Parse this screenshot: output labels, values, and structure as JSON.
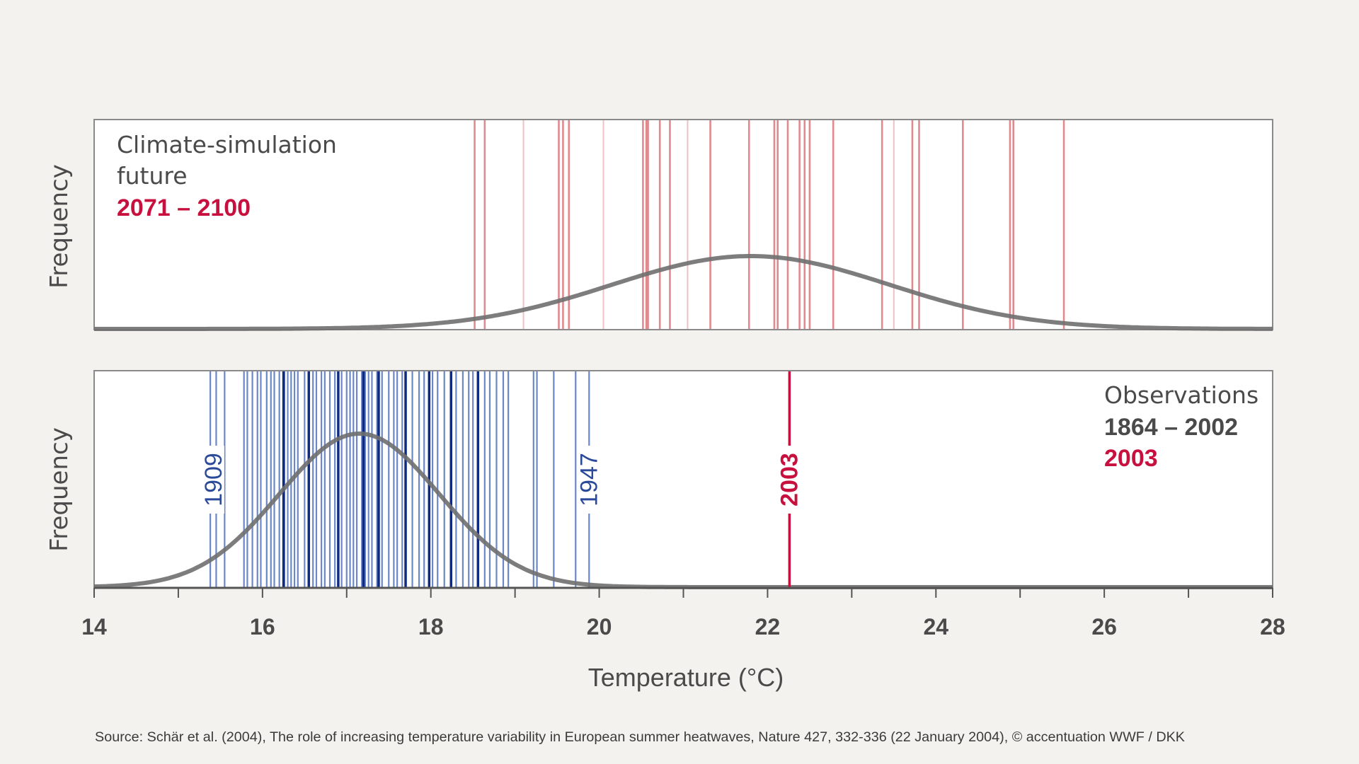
{
  "chart_data": {
    "type": "histogram-rug",
    "xlabel": "Temperature (°C)",
    "xlim": [
      14,
      28
    ],
    "x_ticks": [
      "14",
      "16",
      "18",
      "20",
      "22",
      "24",
      "26",
      "28"
    ],
    "ylabel": "Frequency",
    "colors": {
      "curve": "#6f6f6f",
      "future_lines": "#e08a8f",
      "observed_lines": "#1f3f9a",
      "highlight_red": "#c8103e",
      "text_dark": "#4a4a4a"
    },
    "panels": [
      {
        "id": "future",
        "label_lines": [
          "Climate-simulation",
          "future"
        ],
        "label_period": "2071 – 2100",
        "distribution": {
          "mean": 21.8,
          "sd": 1.65
        },
        "years_temperature": [
          18.52,
          18.64,
          19.52,
          19.57,
          19.64,
          20.52,
          20.56,
          20.58,
          20.72,
          20.84,
          21.32,
          21.78,
          22.08,
          22.12,
          22.24,
          22.38,
          22.44,
          22.5,
          22.78,
          23.36,
          23.72,
          23.8,
          24.32,
          24.88,
          24.92,
          25.52
        ],
        "faint_lines": [
          19.1,
          20.05,
          21.05,
          23.5
        ]
      },
      {
        "id": "observations",
        "label_lines": [
          "Observations",
          "1864 – 2002"
        ],
        "label_period": "2003",
        "distribution": {
          "mean": 17.15,
          "sd": 0.95
        },
        "years_temperature": [
          15.38,
          15.45,
          15.55,
          15.78,
          15.82,
          15.88,
          15.94,
          15.98,
          16.05,
          16.1,
          16.14,
          16.2,
          16.26,
          16.3,
          16.34,
          16.38,
          16.42,
          16.5,
          16.55,
          16.6,
          16.64,
          16.7,
          16.74,
          16.8,
          16.86,
          16.9,
          16.94,
          17.0,
          17.04,
          17.08,
          17.12,
          17.18,
          17.22,
          17.26,
          17.3,
          17.36,
          17.42,
          17.5,
          17.56,
          17.6,
          17.66,
          17.7,
          17.78,
          17.86,
          17.92,
          17.98,
          18.02,
          18.08,
          18.16,
          18.24,
          18.3,
          18.38,
          18.45,
          18.5,
          18.56,
          18.64,
          18.7,
          18.78,
          18.86,
          18.92,
          19.22,
          19.26,
          19.46,
          19.72,
          19.88
        ],
        "dark_lines": [
          16.25,
          16.55,
          16.9,
          17.2,
          17.38,
          17.7,
          17.98,
          18.24,
          18.56
        ],
        "annotations": [
          {
            "year": "1909",
            "x": 15.42,
            "color": "#2a4a99"
          },
          {
            "year": "1947",
            "x": 19.88,
            "color": "#2a4a99"
          },
          {
            "year": "2003",
            "x": 22.26,
            "color": "#c8103e"
          }
        ]
      }
    ],
    "source": "Source: Schär et al. (2004), The role of increasing temperature variability in European summer heatwaves, Nature 427, 332-336 (22 January 2004), © accentuation WWF / DKK"
  }
}
